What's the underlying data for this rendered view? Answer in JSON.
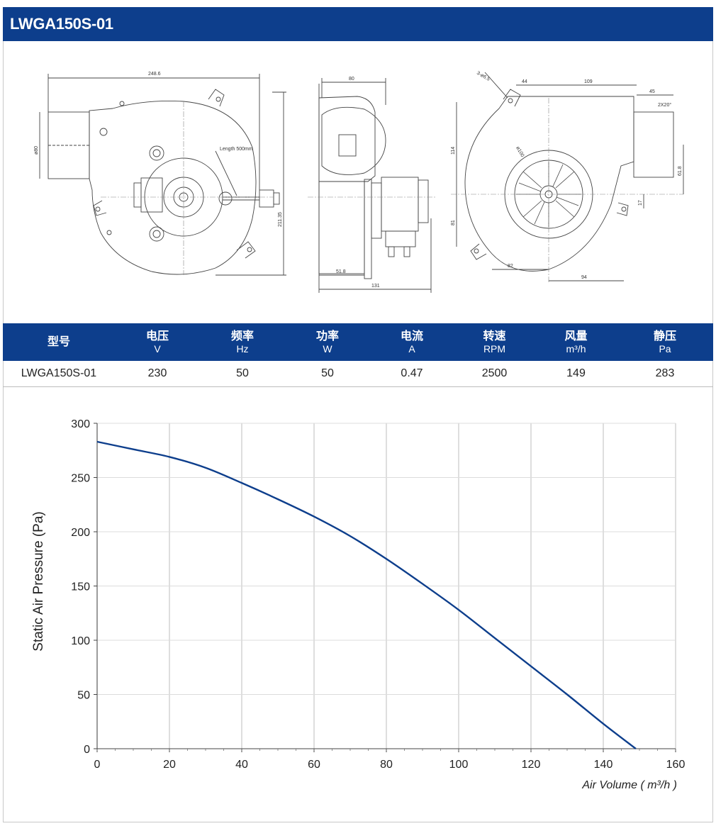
{
  "header": {
    "title": "LWGA150S-01"
  },
  "drawings": {
    "side_view": {
      "dims": [
        "248.6",
        "ø80",
        "Length 500mm",
        "211.35"
      ]
    },
    "front_view": {
      "dims": [
        "80",
        "51.8",
        "131"
      ]
    },
    "back_view": {
      "dims": [
        "3-ø6.5",
        "44",
        "109",
        "45",
        "2X20°",
        "114",
        "ø100",
        "61.8",
        "81",
        "17",
        "82",
        "94"
      ]
    }
  },
  "spec_table": {
    "headers": [
      {
        "zh": "型号",
        "unit": ""
      },
      {
        "zh": "电压",
        "unit": "V"
      },
      {
        "zh": "频率",
        "unit": "Hz"
      },
      {
        "zh": "功率",
        "unit": "W"
      },
      {
        "zh": "电流",
        "unit": "A"
      },
      {
        "zh": "转速",
        "unit": "RPM"
      },
      {
        "zh": "风量",
        "unit": "m³/h"
      },
      {
        "zh": "静压",
        "unit": "Pa"
      }
    ],
    "rows": [
      [
        "LWGA150S-01",
        "230",
        "50",
        "50",
        "0.47",
        "2500",
        "149",
        "283"
      ]
    ]
  },
  "chart_data": {
    "type": "line",
    "title": "",
    "xlabel": "Air Volume ( m³/h )",
    "ylabel": "Static Air Pressure  (Pa)",
    "xlim": [
      0,
      160
    ],
    "ylim": [
      0,
      300
    ],
    "xticks": [
      0,
      20,
      40,
      60,
      80,
      100,
      120,
      140,
      160
    ],
    "yticks": [
      0,
      50,
      100,
      150,
      200,
      250,
      300
    ],
    "grid": true,
    "line_color": "#0d3e8c",
    "series": [
      {
        "name": "",
        "x": [
          0,
          10,
          20,
          30,
          40,
          50,
          60,
          70,
          80,
          90,
          100,
          110,
          120,
          130,
          140,
          149
        ],
        "y": [
          283,
          276,
          269,
          259,
          245,
          230,
          214,
          196,
          175,
          152,
          128,
          102,
          76,
          50,
          23,
          0
        ]
      }
    ]
  }
}
